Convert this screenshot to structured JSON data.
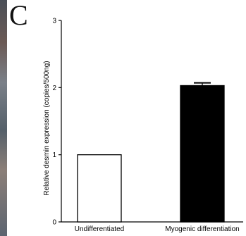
{
  "panel_label": "C",
  "chart_data": {
    "type": "bar",
    "categories": [
      "Undifferentiated",
      "Myogenic differentiation"
    ],
    "values": [
      1.0,
      2.03
    ],
    "errors": [
      0.0,
      0.04
    ],
    "bar_fills": [
      "#ffffff",
      "#000000"
    ],
    "title": "",
    "xlabel": "",
    "ylabel": "Relative desmin expression (copies/500ng)",
    "ylim": [
      0,
      3
    ],
    "yticks": [
      "0",
      "1",
      "2",
      "3"
    ],
    "grid": false,
    "legend": "none"
  }
}
